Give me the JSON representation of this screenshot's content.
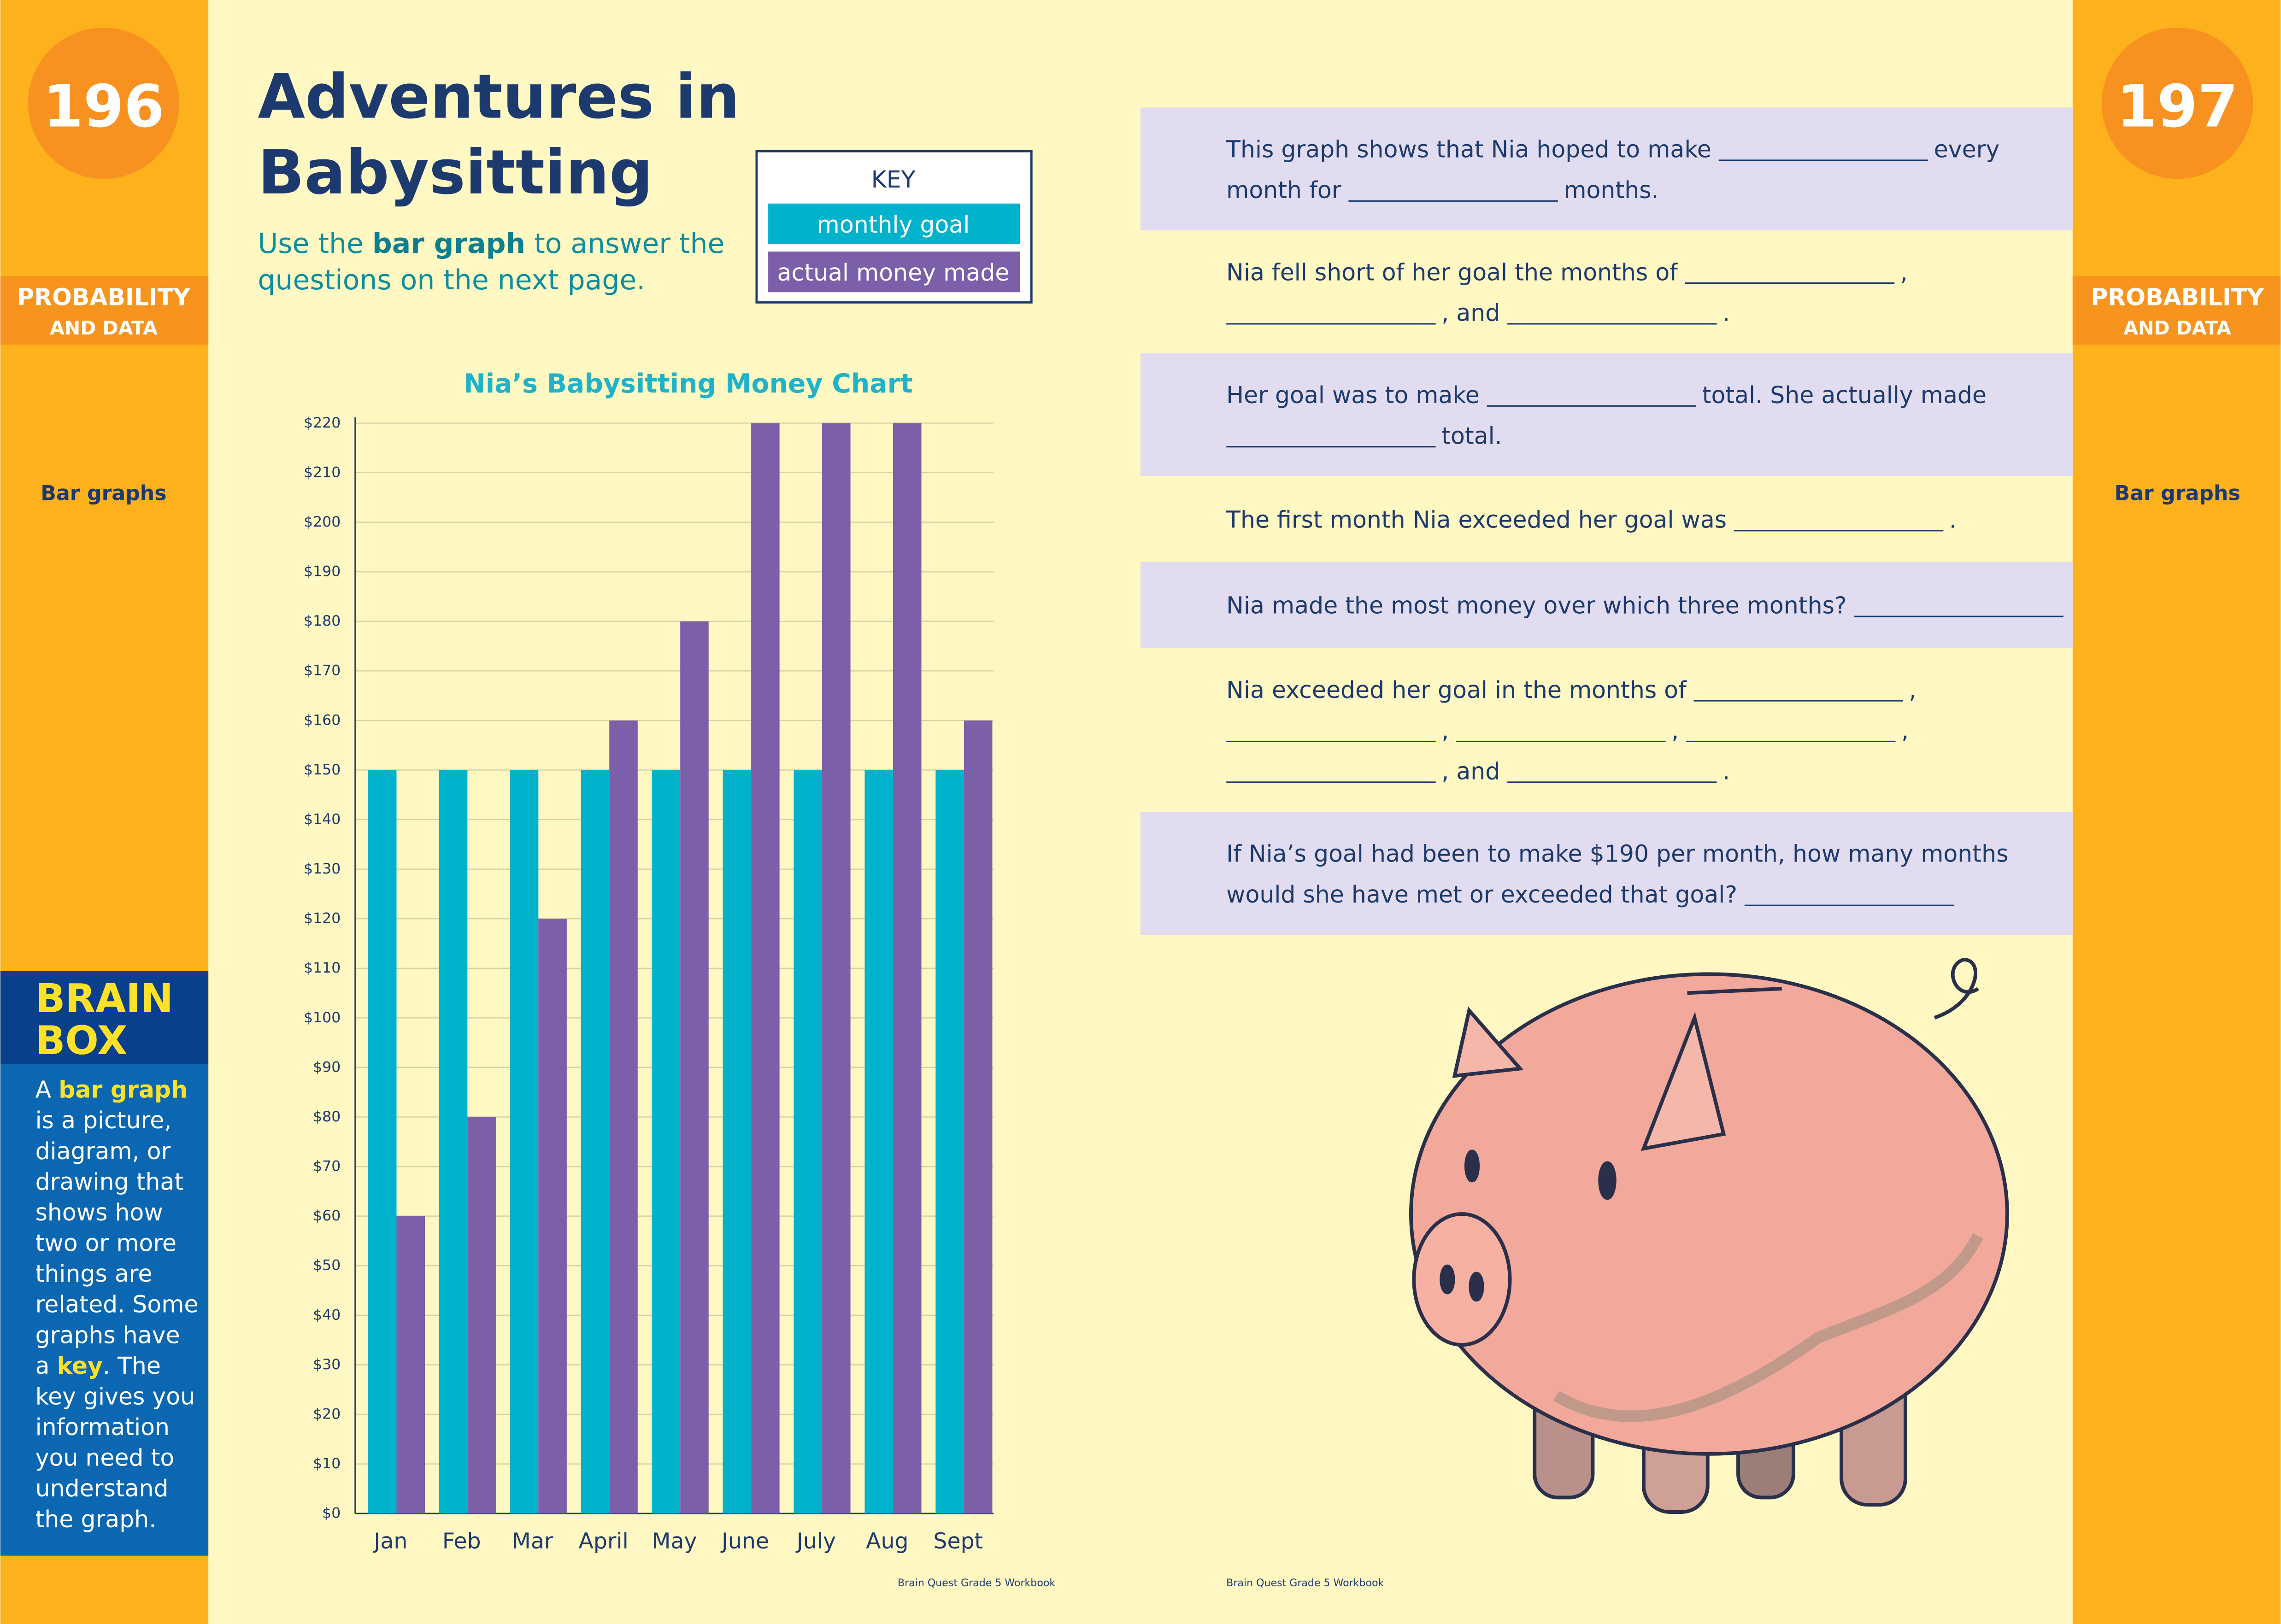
{
  "page_numbers": [
    "196",
    "197"
  ],
  "section_lines": [
    "PROBABILITY",
    "AND DATA"
  ],
  "topic": "Bar graphs",
  "title_lines": [
    "Adventures in",
    "Babysitting"
  ],
  "instruction_lines": [
    [
      "Use the ",
      "bar graph",
      " to answer the"
    ],
    [
      "questions on the next page."
    ]
  ],
  "key_title": "KEY",
  "brain_box": {
    "title_lines": [
      "BRAIN",
      "BOX"
    ],
    "lines": [
      [
        "A ",
        "bar graph"
      ],
      [
        "is a picture,"
      ],
      [
        "diagram, or"
      ],
      [
        "drawing that"
      ],
      [
        "shows how"
      ],
      [
        "two or more"
      ],
      [
        "things are"
      ],
      [
        "related. Some"
      ],
      [
        "graphs have"
      ],
      [
        "a ",
        "key",
        ". The"
      ],
      [
        "key gives you"
      ],
      [
        "information"
      ],
      [
        "you need to"
      ],
      [
        "understand"
      ],
      [
        "the graph."
      ]
    ]
  },
  "questions": [
    [
      [
        "This graph shows that Nia hoped to make",
        null,
        "every"
      ],
      [
        "month for",
        null,
        "months."
      ]
    ],
    [
      [
        "Nia fell short of her goal the months of",
        null,
        ","
      ],
      [
        null,
        ", and",
        null,
        "."
      ]
    ],
    [
      [
        "Her goal was to make",
        null,
        "total. She actually made"
      ],
      [
        null,
        "total."
      ]
    ],
    [
      [
        "The first month Nia exceeded her goal was",
        null,
        "."
      ]
    ],
    [
      [
        "Nia made the most money over which three months?",
        null
      ]
    ],
    [
      [
        "Nia exceeded her goal in the months of",
        null,
        ","
      ],
      [
        null,
        ",",
        null,
        ",",
        null,
        ","
      ],
      [
        null,
        ", and",
        null,
        "."
      ]
    ],
    [
      [
        "If Nia’s goal had been to make $190 per month, how many months"
      ],
      [
        "would she have met or exceeded that goal?",
        null
      ]
    ]
  ],
  "footer": [
    "Brain Quest Grade 5 Workbook",
    "Brain Quest Grade 5 Workbook"
  ],
  "chart_data": {
    "type": "bar",
    "title": "Nia’s Babysitting Money Chart",
    "categories": [
      "Jan",
      "Feb",
      "Mar",
      "April",
      "May",
      "June",
      "July",
      "Aug",
      "Sept"
    ],
    "series": [
      {
        "name": "monthly goal",
        "color": "#00b2cb",
        "values": [
          150,
          150,
          150,
          150,
          150,
          150,
          150,
          150,
          150
        ]
      },
      {
        "name": "actual money made",
        "color": "#7b5fa8",
        "values": [
          60,
          80,
          120,
          160,
          180,
          220,
          220,
          220,
          160
        ]
      }
    ],
    "ylim": [
      0,
      220
    ],
    "yticks": [
      {
        "value": 0,
        "label": "$0"
      },
      {
        "value": 10,
        "label": "$10"
      },
      {
        "value": 20,
        "label": "$20"
      },
      {
        "value": 30,
        "label": "$30"
      },
      {
        "value": 40,
        "label": "$40"
      },
      {
        "value": 50,
        "label": "$50"
      },
      {
        "value": 60,
        "label": "$60"
      },
      {
        "value": 70,
        "label": "$70"
      },
      {
        "value": 80,
        "label": "$80"
      },
      {
        "value": 90,
        "label": "$90"
      },
      {
        "value": 100,
        "label": "$100"
      },
      {
        "value": 110,
        "label": "$110"
      },
      {
        "value": 120,
        "label": "$120"
      },
      {
        "value": 130,
        "label": "$130"
      },
      {
        "value": 140,
        "label": "$140"
      },
      {
        "value": 150,
        "label": "$150"
      },
      {
        "value": 160,
        "label": "$160"
      },
      {
        "value": 170,
        "label": "$170"
      },
      {
        "value": 180,
        "label": "$180"
      },
      {
        "value": 190,
        "label": "$190"
      },
      {
        "value": 200,
        "label": "$200"
      },
      {
        "value": 210,
        "label": "$210"
      },
      {
        "value": 220,
        "label": "$220"
      }
    ],
    "grid": true
  }
}
